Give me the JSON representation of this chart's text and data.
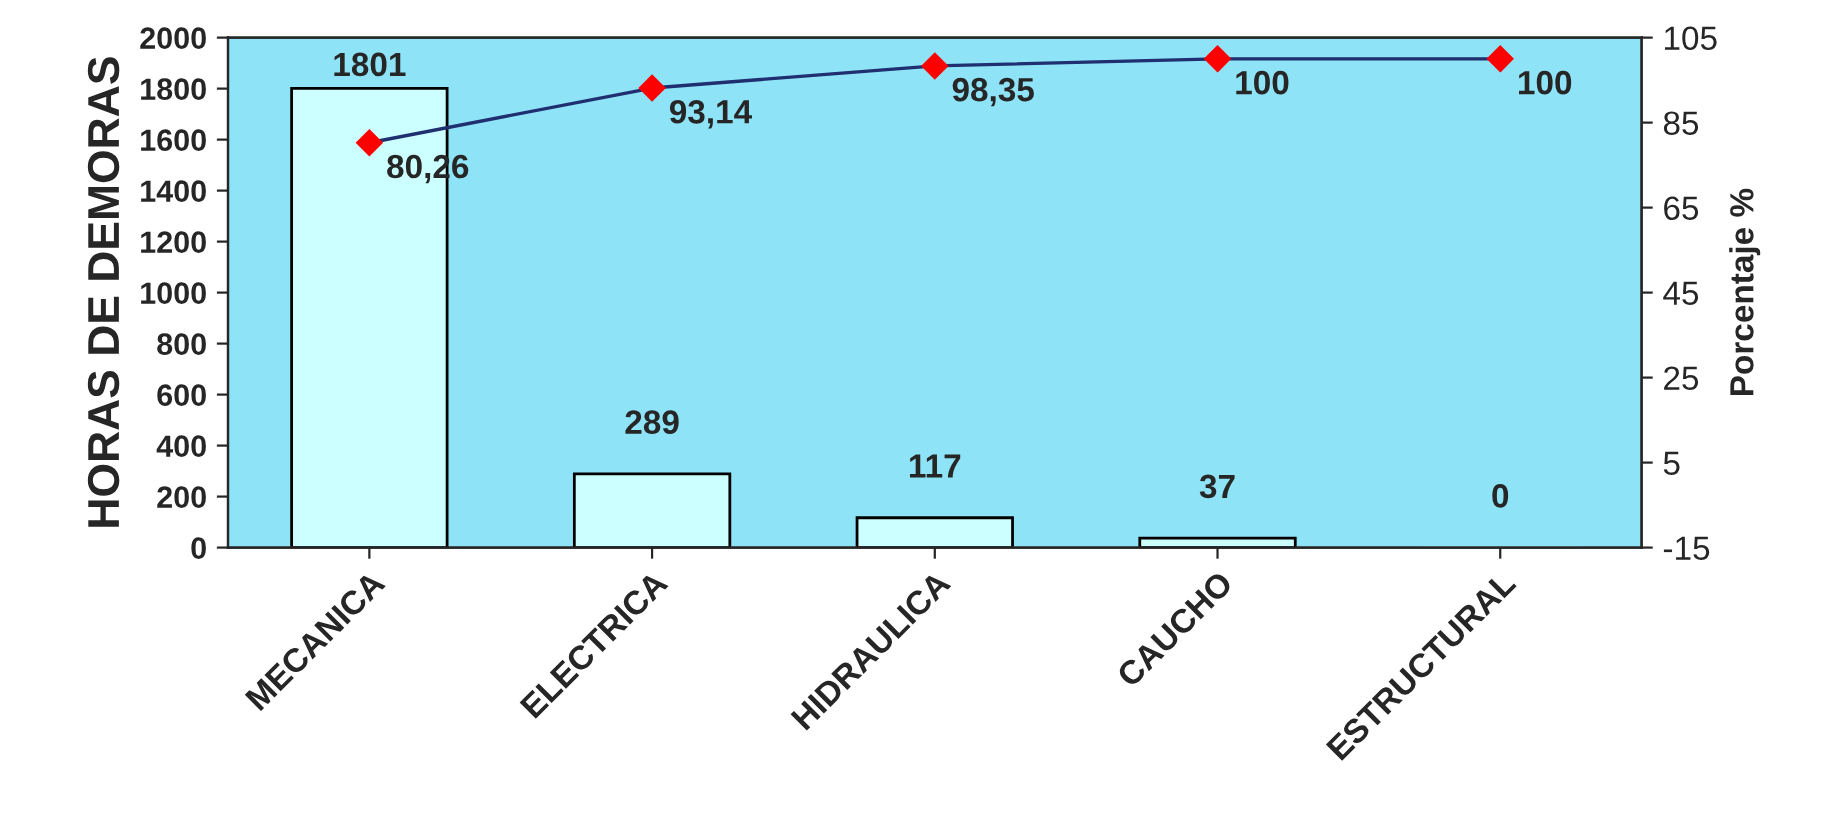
{
  "chart_data": {
    "type": "bar",
    "ylabel": "HORAS DE DEMORAS",
    "y2label": "Porcentaje %",
    "categories": [
      "MECANICA",
      "ELECTRICA",
      "HIDRAULICA",
      "CAUCHO",
      "ESTRUCTURAL"
    ],
    "series": [
      {
        "color": "#ccffff",
        "values": [
          1801,
          289,
          117,
          37,
          0
        ],
        "value_labels": [
          "1801",
          "289",
          "117",
          "37",
          "0"
        ]
      },
      {
        "type": "line",
        "axis": "y2",
        "color": "#1f2f6f",
        "colors": [
          "#ff0000",
          "#ff0000",
          "#ff0000",
          "#ff0000",
          "#ff0000"
        ],
        "marker": "diamond",
        "line_style": "solid",
        "values": [
          80.26,
          93.14,
          98.35,
          100,
          100
        ],
        "value_labels": [
          "80,26",
          "93,14",
          "98,35",
          "100",
          "100"
        ]
      }
    ],
    "ylim": [
      0,
      2000
    ],
    "yticks": [
      0,
      200,
      400,
      600,
      800,
      1000,
      1200,
      1400,
      1600,
      1800,
      2000
    ],
    "y2lim": [
      -15,
      105
    ],
    "y2ticks": [
      -15,
      5,
      25,
      45,
      65,
      85,
      105
    ],
    "grid": false
  }
}
